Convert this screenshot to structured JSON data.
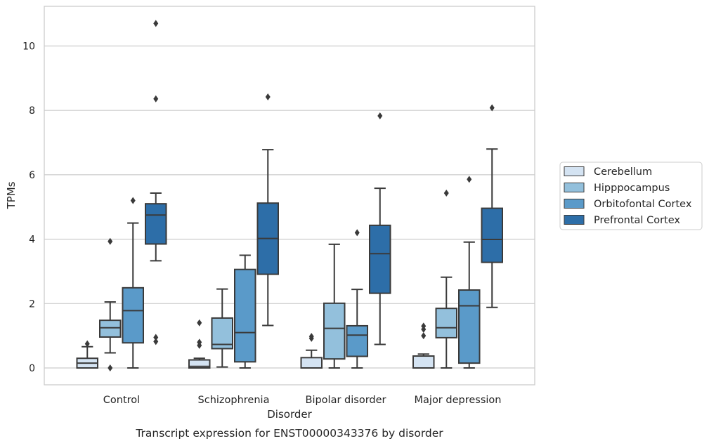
{
  "chart_data": {
    "type": "box",
    "caption": "Transcript expression for ENST00000343376 by disorder",
    "xlabel": "Disorder",
    "ylabel": "TPMs",
    "ylim": [
      -0.5,
      11.25
    ],
    "yticks": [
      0,
      2,
      4,
      6,
      8,
      10
    ],
    "grid": true,
    "legend_position": "right",
    "categories": [
      "Control",
      "Schizophrenia",
      "Bipolar disorder",
      "Major depression"
    ],
    "series": [
      {
        "name": "Cerebellum",
        "color": "#d4e3f2",
        "boxes": [
          {
            "whislo": 0.0,
            "q1": 0.0,
            "med": 0.15,
            "q3": 0.3,
            "whishi": 0.66,
            "fliers": [
              0.75
            ]
          },
          {
            "whislo": 0.0,
            "q1": 0.0,
            "med": 0.05,
            "q3": 0.25,
            "whishi": 0.3,
            "fliers": [
              0.7,
              0.8,
              1.4
            ]
          },
          {
            "whislo": 0.0,
            "q1": 0.0,
            "med": 0.0,
            "q3": 0.32,
            "whishi": 0.55,
            "fliers": [
              0.92,
              0.98
            ]
          },
          {
            "whislo": 0.0,
            "q1": 0.0,
            "med": 0.0,
            "q3": 0.37,
            "whishi": 0.43,
            "fliers": [
              1.0,
              1.2,
              1.3
            ]
          }
        ]
      },
      {
        "name": "Hipppocampus",
        "color": "#93c0dc",
        "boxes": [
          {
            "whislo": 0.47,
            "q1": 0.96,
            "med": 1.25,
            "q3": 1.48,
            "whishi": 2.05,
            "fliers": [
              0.0,
              3.93
            ]
          },
          {
            "whislo": 0.03,
            "q1": 0.6,
            "med": 0.73,
            "q3": 1.55,
            "whishi": 2.45,
            "fliers": []
          },
          {
            "whislo": 0.0,
            "q1": 0.28,
            "med": 1.23,
            "q3": 2.01,
            "whishi": 3.84,
            "fliers": []
          },
          {
            "whislo": 0.0,
            "q1": 0.94,
            "med": 1.25,
            "q3": 1.85,
            "whishi": 2.82,
            "fliers": [
              5.43
            ]
          }
        ]
      },
      {
        "name": "Orbitofontal Cortex",
        "color": "#5a9ac9",
        "boxes": [
          {
            "whislo": 0.0,
            "q1": 0.78,
            "med": 1.78,
            "q3": 2.49,
            "whishi": 4.5,
            "fliers": [
              5.2
            ]
          },
          {
            "whislo": 0.0,
            "q1": 0.19,
            "med": 1.1,
            "q3": 3.06,
            "whishi": 3.5,
            "fliers": []
          },
          {
            "whislo": 0.0,
            "q1": 0.36,
            "med": 1.02,
            "q3": 1.31,
            "whishi": 2.44,
            "fliers": [
              4.2
            ]
          },
          {
            "whislo": 0.0,
            "q1": 0.15,
            "med": 1.93,
            "q3": 2.42,
            "whishi": 3.91,
            "fliers": [
              5.86
            ]
          }
        ]
      },
      {
        "name": "Prefrontal Cortex",
        "color": "#2d6ea8",
        "boxes": [
          {
            "whislo": 3.33,
            "q1": 3.85,
            "med": 4.75,
            "q3": 5.1,
            "whishi": 5.43,
            "fliers": [
              0.82,
              0.95,
              8.36,
              10.7
            ]
          },
          {
            "whislo": 1.32,
            "q1": 2.91,
            "med": 4.02,
            "q3": 5.12,
            "whishi": 6.78,
            "fliers": [
              8.42
            ]
          },
          {
            "whislo": 0.73,
            "q1": 2.32,
            "med": 3.55,
            "q3": 4.43,
            "whishi": 5.58,
            "fliers": [
              7.83
            ]
          },
          {
            "whislo": 1.88,
            "q1": 3.28,
            "med": 3.99,
            "q3": 4.96,
            "whishi": 6.8,
            "fliers": [
              8.08
            ]
          }
        ]
      }
    ]
  }
}
